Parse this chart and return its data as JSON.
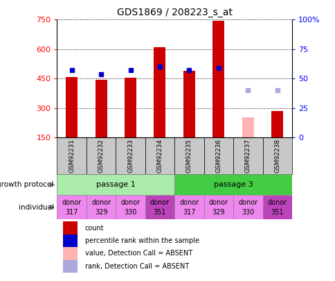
{
  "title": "GDS1869 / 208223_s_at",
  "samples": [
    "GSM92231",
    "GSM92232",
    "GSM92233",
    "GSM92234",
    "GSM92235",
    "GSM92236",
    "GSM92237",
    "GSM92238"
  ],
  "count_values": [
    460,
    445,
    455,
    610,
    490,
    745,
    null,
    285
  ],
  "count_absent": [
    null,
    null,
    null,
    null,
    null,
    null,
    255,
    null
  ],
  "percentile_rank": [
    57,
    54,
    57,
    60,
    57,
    59,
    null,
    null
  ],
  "percentile_rank_absent": [
    null,
    null,
    null,
    null,
    null,
    null,
    40,
    40
  ],
  "ylim_left": [
    150,
    750
  ],
  "ylim_right": [
    0,
    100
  ],
  "yticks_left": [
    150,
    300,
    450,
    600,
    750
  ],
  "yticks_right": [
    0,
    25,
    50,
    75,
    100
  ],
  "bar_color": "#cc0000",
  "bar_absent_color": "#ffb3b3",
  "dot_color": "#0000cc",
  "dot_absent_color": "#aaaadd",
  "passage1_color": "#aaeaaa",
  "passage3_color": "#44cc44",
  "sample_label_bg": "#c8c8c8",
  "individual_colors": [
    "#ee88ee",
    "#ee88ee",
    "#ee88ee",
    "#bb44bb",
    "#ee88ee",
    "#ee88ee",
    "#ee88ee",
    "#bb44bb"
  ],
  "individual_labels": [
    [
      "donor",
      "317"
    ],
    [
      "donor",
      "329"
    ],
    [
      "donor",
      "330"
    ],
    [
      "donor",
      "351"
    ],
    [
      "donor",
      "317"
    ],
    [
      "donor",
      "329"
    ],
    [
      "donor",
      "330"
    ],
    [
      "donor",
      "351"
    ]
  ],
  "legend_items": [
    {
      "label": "count",
      "color": "#cc0000"
    },
    {
      "label": "percentile rank within the sample",
      "color": "#0000cc"
    },
    {
      "label": "value, Detection Call = ABSENT",
      "color": "#ffb3b3"
    },
    {
      "label": "rank, Detection Call = ABSENT",
      "color": "#aaaadd"
    }
  ]
}
